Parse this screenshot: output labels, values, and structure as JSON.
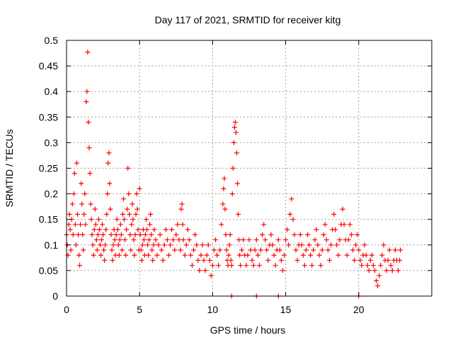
{
  "chart_data": {
    "type": "scatter",
    "title": "Day 117 of 2021, SRMTID for receiver kitg",
    "xlabel": "GPS time / hours",
    "ylabel": "SRMTID / TECUs",
    "xlim": [
      0,
      25
    ],
    "ylim": [
      0,
      0.5
    ],
    "xticks": [
      "0",
      "5",
      "10",
      "15",
      "20"
    ],
    "yticks": [
      "0",
      "0.05",
      "0.1",
      "0.15",
      "0.2",
      "0.25",
      "0.3",
      "0.35",
      "0.4",
      "0.45",
      "0.5"
    ],
    "grid": true,
    "marker": "+",
    "color": "#ff0000",
    "series": [
      {
        "points": [
          [
            0.0,
            0.12
          ],
          [
            0.05,
            0.1
          ],
          [
            0.1,
            0.08
          ],
          [
            0.15,
            0.14
          ],
          [
            0.2,
            0.16
          ],
          [
            0.25,
            0.13
          ],
          [
            0.3,
            0.09
          ],
          [
            0.35,
            0.15
          ],
          [
            0.4,
            0.18
          ],
          [
            0.45,
            0.12
          ],
          [
            0.5,
            0.2
          ],
          [
            0.55,
            0.24
          ],
          [
            0.6,
            0.14
          ],
          [
            0.65,
            0.1
          ],
          [
            0.7,
            0.26
          ],
          [
            0.75,
            0.16
          ],
          [
            0.8,
            0.12
          ],
          [
            0.85,
            0.08
          ],
          [
            0.9,
            0.06
          ],
          [
            0.95,
            0.14
          ],
          [
            1.0,
            0.22
          ],
          [
            1.05,
            0.18
          ],
          [
            1.1,
            0.12
          ],
          [
            1.15,
            0.09
          ],
          [
            1.2,
            0.16
          ],
          [
            1.25,
            0.2
          ],
          [
            1.3,
            0.14
          ],
          [
            1.35,
            0.38
          ],
          [
            1.4,
            0.4
          ],
          [
            1.45,
            0.477
          ],
          [
            1.5,
            0.34
          ],
          [
            1.55,
            0.29
          ],
          [
            1.6,
            0.24
          ],
          [
            1.65,
            0.18
          ],
          [
            1.7,
            0.15
          ],
          [
            1.75,
            0.12
          ],
          [
            1.8,
            0.1
          ],
          [
            1.85,
            0.08
          ],
          [
            1.9,
            0.13
          ],
          [
            1.95,
            0.17
          ],
          [
            2.0,
            0.14
          ],
          [
            2.05,
            0.11
          ],
          [
            2.1,
            0.09
          ],
          [
            2.15,
            0.12
          ],
          [
            2.2,
            0.15
          ],
          [
            2.25,
            0.13
          ],
          [
            2.3,
            0.1
          ],
          [
            2.35,
            0.08
          ],
          [
            2.4,
            0.11
          ],
          [
            2.45,
            0.14
          ],
          [
            2.5,
            0.12
          ],
          [
            2.55,
            0.09
          ],
          [
            2.6,
            0.07
          ],
          [
            2.65,
            0.1
          ],
          [
            2.7,
            0.13
          ],
          [
            2.75,
            0.16
          ],
          [
            2.8,
            0.2
          ],
          [
            2.85,
            0.26
          ],
          [
            2.9,
            0.28
          ],
          [
            2.95,
            0.22
          ],
          [
            3.0,
            0.17
          ],
          [
            3.05,
            0.12
          ],
          [
            3.1,
            0.09
          ],
          [
            3.15,
            0.07
          ],
          [
            3.2,
            0.1
          ],
          [
            3.25,
            0.13
          ],
          [
            3.3,
            0.11
          ],
          [
            3.35,
            0.08
          ],
          [
            3.4,
            0.12
          ],
          [
            3.45,
            0.15
          ],
          [
            3.5,
            0.13
          ],
          [
            3.55,
            0.1
          ],
          [
            3.6,
            0.08
          ],
          [
            3.65,
            0.11
          ],
          [
            3.7,
            0.14
          ],
          [
            3.75,
            0.12
          ],
          [
            3.8,
            0.09
          ],
          [
            3.85,
            0.16
          ],
          [
            3.9,
            0.19
          ],
          [
            3.95,
            0.15
          ],
          [
            4.0,
            0.11
          ],
          [
            4.05,
            0.08
          ],
          [
            4.1,
            0.13
          ],
          [
            4.15,
            0.17
          ],
          [
            4.2,
            0.25
          ],
          [
            4.25,
            0.2
          ],
          [
            4.3,
            0.16
          ],
          [
            4.35,
            0.12
          ],
          [
            4.4,
            0.09
          ],
          [
            4.45,
            0.14
          ],
          [
            4.5,
            0.18
          ],
          [
            4.55,
            0.15
          ],
          [
            4.6,
            0.11
          ],
          [
            4.65,
            0.08
          ],
          [
            4.7,
            0.12
          ],
          [
            4.75,
            0.16
          ],
          [
            4.8,
            0.2
          ],
          [
            4.85,
            0.17
          ],
          [
            4.9,
            0.13
          ],
          [
            4.95,
            0.09
          ],
          [
            5.0,
            0.21
          ],
          [
            5.05,
            0.12
          ],
          [
            5.1,
            0.09
          ],
          [
            5.15,
            0.07
          ],
          [
            5.2,
            0.1
          ],
          [
            5.25,
            0.13
          ],
          [
            5.3,
            0.11
          ],
          [
            5.35,
            0.08
          ],
          [
            5.4,
            0.12
          ],
          [
            5.45,
            0.15
          ],
          [
            5.5,
            0.13
          ],
          [
            5.55,
            0.1
          ],
          [
            5.6,
            0.08
          ],
          [
            5.65,
            0.11
          ],
          [
            5.7,
            0.14
          ],
          [
            5.75,
            0.16
          ],
          [
            5.8,
            0.12
          ],
          [
            5.85,
            0.09
          ],
          [
            5.9,
            0.07
          ],
          [
            5.95,
            0.1
          ],
          [
            6.0,
            0.13
          ],
          [
            6.1,
            0.11
          ],
          [
            6.2,
            0.08
          ],
          [
            6.3,
            0.1
          ],
          [
            6.4,
            0.12
          ],
          [
            6.5,
            0.09
          ],
          [
            6.6,
            0.07
          ],
          [
            6.7,
            0.1
          ],
          [
            6.8,
            0.13
          ],
          [
            6.9,
            0.11
          ],
          [
            7.0,
            0.08
          ],
          [
            7.1,
            0.1
          ],
          [
            7.2,
            0.13
          ],
          [
            7.3,
            0.11
          ],
          [
            7.4,
            0.09
          ],
          [
            7.5,
            0.12
          ],
          [
            7.6,
            0.14
          ],
          [
            7.7,
            0.11
          ],
          [
            7.8,
            0.09
          ],
          [
            7.85,
            0.17
          ],
          [
            7.9,
            0.18
          ],
          [
            7.95,
            0.14
          ],
          [
            8.0,
            0.11
          ],
          [
            8.1,
            0.08
          ],
          [
            8.2,
            0.1
          ],
          [
            8.3,
            0.13
          ],
          [
            8.4,
            0.11
          ],
          [
            8.5,
            0.08
          ],
          [
            8.6,
            0.06
          ],
          [
            8.7,
            0.09
          ],
          [
            8.8,
            0.12
          ],
          [
            8.9,
            0.1
          ],
          [
            9.0,
            0.07
          ],
          [
            9.1,
            0.05
          ],
          [
            9.2,
            0.08
          ],
          [
            9.3,
            0.1
          ],
          [
            9.4,
            0.07
          ],
          [
            9.5,
            0.05
          ],
          [
            9.6,
            0.08
          ],
          [
            9.7,
            0.1
          ],
          [
            9.8,
            0.07
          ],
          [
            9.9,
            0.04
          ],
          [
            10.0,
            0.06
          ],
          [
            10.1,
            0.09
          ],
          [
            10.2,
            0.11
          ],
          [
            10.3,
            0.08
          ],
          [
            10.4,
            0.06
          ],
          [
            10.5,
            0.09
          ],
          [
            10.6,
            0.14
          ],
          [
            10.7,
            0.18
          ],
          [
            10.75,
            0.21
          ],
          [
            10.8,
            0.23
          ],
          [
            10.85,
            0.17
          ],
          [
            10.9,
            0.12
          ],
          [
            10.95,
            0.09
          ],
          [
            11.0,
            0.07
          ],
          [
            11.05,
            0.06
          ],
          [
            11.1,
            0.08
          ],
          [
            11.15,
            0.1
          ],
          [
            11.2,
            0.12
          ],
          [
            11.25,
            0.07
          ],
          [
            11.3,
            0.06
          ],
          [
            11.35,
            0.2
          ],
          [
            11.4,
            0.25
          ],
          [
            11.45,
            0.3
          ],
          [
            11.5,
            0.33
          ],
          [
            11.55,
            0.34
          ],
          [
            11.6,
            0.32
          ],
          [
            11.65,
            0.28
          ],
          [
            11.7,
            0.22
          ],
          [
            11.75,
            0.16
          ],
          [
            11.8,
            0.11
          ],
          [
            11.85,
            0.08
          ],
          [
            11.9,
            0.06
          ],
          [
            12.0,
            0.09
          ],
          [
            12.1,
            0.11
          ],
          [
            12.2,
            0.08
          ],
          [
            12.3,
            0.06
          ],
          [
            12.4,
            0.08
          ],
          [
            12.5,
            0.11
          ],
          [
            12.6,
            0.09
          ],
          [
            12.7,
            0.07
          ],
          [
            12.8,
            0.06
          ],
          [
            12.9,
            0.09
          ],
          [
            13.0,
            0.11
          ],
          [
            13.1,
            0.08
          ],
          [
            13.2,
            0.06
          ],
          [
            13.3,
            0.09
          ],
          [
            13.4,
            0.12
          ],
          [
            13.5,
            0.14
          ],
          [
            13.6,
            0.11
          ],
          [
            13.7,
            0.09
          ],
          [
            13.8,
            0.07
          ],
          [
            13.9,
            0.1
          ],
          [
            14.0,
            0.12
          ],
          [
            14.1,
            0.1
          ],
          [
            14.2,
            0.08
          ],
          [
            14.3,
            0.06
          ],
          [
            14.4,
            0.09
          ],
          [
            14.5,
            0.11
          ],
          [
            14.6,
            0.09
          ],
          [
            14.7,
            0.07
          ],
          [
            14.8,
            0.05
          ],
          [
            14.9,
            0.08
          ],
          [
            15.0,
            0.11
          ],
          [
            15.1,
            0.13
          ],
          [
            15.2,
            0.1
          ],
          [
            15.3,
            0.16
          ],
          [
            15.4,
            0.19
          ],
          [
            15.5,
            0.15
          ],
          [
            15.6,
            0.12
          ],
          [
            15.7,
            0.09
          ],
          [
            15.8,
            0.07
          ],
          [
            15.9,
            0.1
          ],
          [
            16.0,
            0.12
          ],
          [
            16.1,
            0.1
          ],
          [
            16.2,
            0.08
          ],
          [
            16.3,
            0.06
          ],
          [
            16.4,
            0.09
          ],
          [
            16.5,
            0.12
          ],
          [
            16.6,
            0.1
          ],
          [
            16.7,
            0.08
          ],
          [
            16.8,
            0.06
          ],
          [
            16.9,
            0.09
          ],
          [
            17.0,
            0.11
          ],
          [
            17.1,
            0.13
          ],
          [
            17.2,
            0.1
          ],
          [
            17.3,
            0.08
          ],
          [
            17.4,
            0.06
          ],
          [
            17.5,
            0.09
          ],
          [
            17.6,
            0.12
          ],
          [
            17.7,
            0.14
          ],
          [
            17.8,
            0.11
          ],
          [
            17.9,
            0.09
          ],
          [
            18.0,
            0.07
          ],
          [
            18.1,
            0.1
          ],
          [
            18.2,
            0.13
          ],
          [
            18.3,
            0.16
          ],
          [
            18.4,
            0.13
          ],
          [
            18.5,
            0.1
          ],
          [
            18.6,
            0.08
          ],
          [
            18.7,
            0.11
          ],
          [
            18.8,
            0.14
          ],
          [
            18.9,
            0.17
          ],
          [
            19.0,
            0.14
          ],
          [
            19.1,
            0.11
          ],
          [
            19.2,
            0.08
          ],
          [
            19.3,
            0.11
          ],
          [
            19.4,
            0.14
          ],
          [
            19.5,
            0.12
          ],
          [
            19.6,
            0.09
          ],
          [
            19.7,
            0.07
          ],
          [
            19.8,
            0.1
          ],
          [
            19.9,
            0.12
          ],
          [
            20.0,
            0.09
          ],
          [
            20.1,
            0.07
          ],
          [
            20.2,
            0.06
          ],
          [
            20.3,
            0.08
          ],
          [
            20.4,
            0.1
          ],
          [
            20.5,
            0.08
          ],
          [
            20.6,
            0.06
          ],
          [
            20.7,
            0.05
          ],
          [
            20.8,
            0.07
          ],
          [
            20.9,
            0.08
          ],
          [
            21.0,
            0.06
          ],
          [
            21.1,
            0.05
          ],
          [
            21.2,
            0.03
          ],
          [
            21.3,
            0.02
          ],
          [
            21.4,
            0.04
          ],
          [
            21.5,
            0.06
          ],
          [
            21.6,
            0.08
          ],
          [
            21.7,
            0.1
          ],
          [
            21.8,
            0.07
          ],
          [
            21.9,
            0.05
          ],
          [
            22.0,
            0.07
          ],
          [
            22.1,
            0.09
          ],
          [
            22.2,
            0.06
          ],
          [
            22.3,
            0.05
          ],
          [
            22.4,
            0.07
          ],
          [
            22.5,
            0.09
          ],
          [
            22.6,
            0.07
          ],
          [
            22.7,
            0.05
          ],
          [
            22.8,
            0.07
          ],
          [
            22.85,
            0.09
          ],
          [
            11.3,
            0.0
          ],
          [
            13.0,
            0.0
          ],
          [
            14.5,
            0.0
          ],
          [
            20.0,
            0.0
          ]
        ]
      }
    ]
  }
}
